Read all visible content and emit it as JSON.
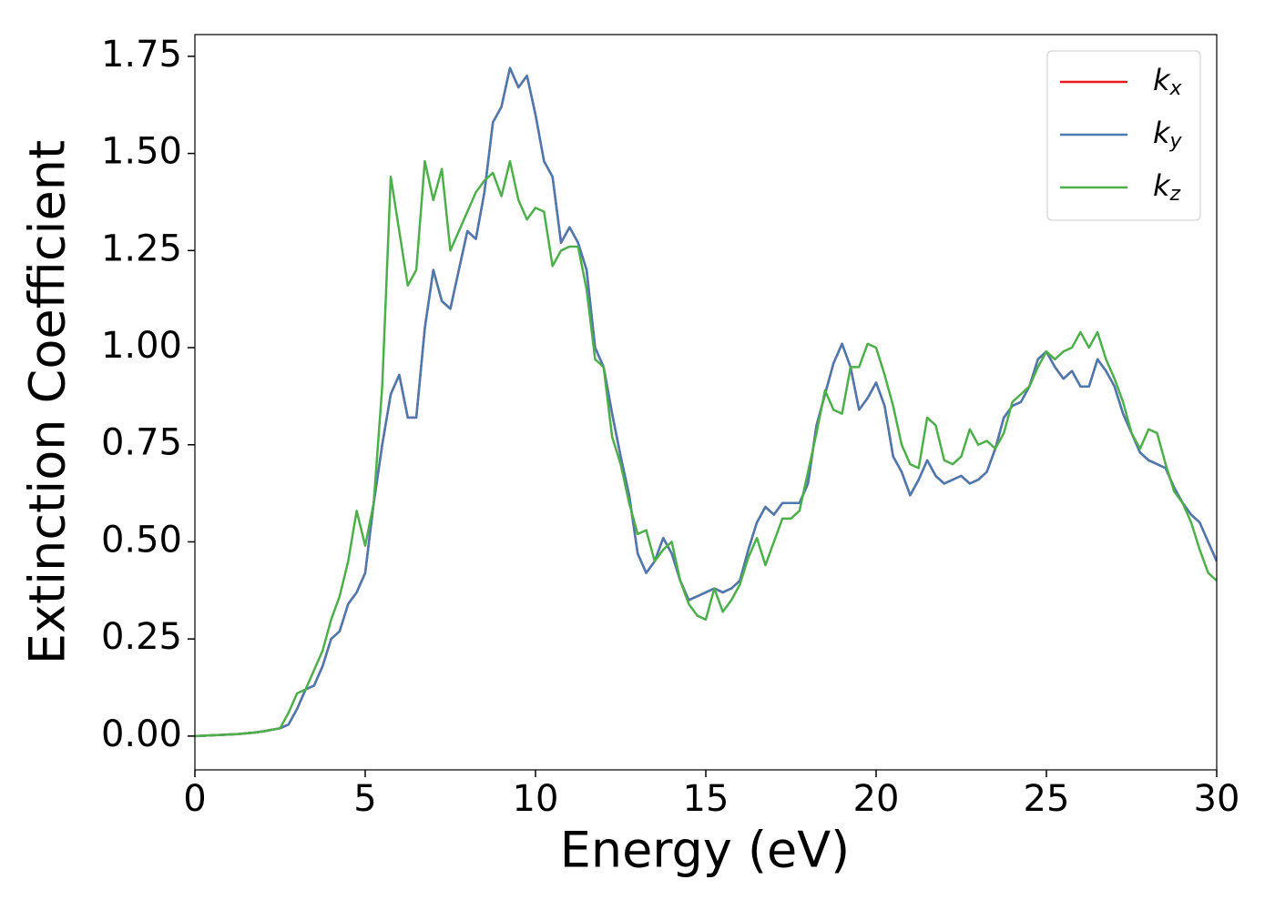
{
  "chart_data": {
    "type": "line",
    "xlabel": "Energy (eV)",
    "ylabel": "Extinction Coefficient",
    "x": [
      0,
      0.25,
      0.5,
      0.75,
      1,
      1.25,
      1.5,
      1.75,
      2,
      2.25,
      2.5,
      2.75,
      3,
      3.25,
      3.5,
      3.75,
      4,
      4.25,
      4.5,
      4.75,
      5,
      5.25,
      5.5,
      5.75,
      6,
      6.25,
      6.5,
      6.75,
      7,
      7.25,
      7.5,
      7.75,
      8,
      8.25,
      8.5,
      8.75,
      9,
      9.25,
      9.5,
      9.75,
      10,
      10.25,
      10.5,
      10.75,
      11,
      11.25,
      11.5,
      11.75,
      12,
      12.25,
      12.5,
      12.75,
      13,
      13.25,
      13.5,
      13.75,
      14,
      14.25,
      14.5,
      14.75,
      15,
      15.25,
      15.5,
      15.75,
      16,
      16.25,
      16.5,
      16.75,
      17,
      17.25,
      17.5,
      17.75,
      18,
      18.25,
      18.5,
      18.75,
      19,
      19.25,
      19.5,
      19.75,
      20,
      20.25,
      20.5,
      20.75,
      21,
      21.25,
      21.5,
      21.75,
      22,
      22.25,
      22.5,
      22.75,
      23,
      23.25,
      23.5,
      23.75,
      24,
      24.25,
      24.5,
      24.75,
      25,
      25.25,
      25.5,
      25.75,
      26,
      26.25,
      26.5,
      26.75,
      27,
      27.25,
      27.5,
      27.75,
      28,
      28.25,
      28.5,
      28.75,
      29,
      29.25,
      29.5,
      29.75,
      30
    ],
    "series": [
      {
        "name": "kx",
        "color": "#e41a1c",
        "values": [
          0,
          0.001,
          0.002,
          0.003,
          0.004,
          0.005,
          0.007,
          0.009,
          0.012,
          0.016,
          0.02,
          0.03,
          0.07,
          0.12,
          0.13,
          0.18,
          0.25,
          0.27,
          0.34,
          0.37,
          0.42,
          0.6,
          0.75,
          0.88,
          0.93,
          0.82,
          0.82,
          1.05,
          1.2,
          1.12,
          1.1,
          1.2,
          1.3,
          1.28,
          1.4,
          1.58,
          1.62,
          1.72,
          1.67,
          1.7,
          1.6,
          1.48,
          1.44,
          1.27,
          1.31,
          1.27,
          1.2,
          1.0,
          0.95,
          0.83,
          0.72,
          0.62,
          0.47,
          0.42,
          0.45,
          0.51,
          0.47,
          0.4,
          0.35,
          0.36,
          0.37,
          0.38,
          0.37,
          0.38,
          0.4,
          0.48,
          0.55,
          0.59,
          0.57,
          0.6,
          0.6,
          0.6,
          0.65,
          0.8,
          0.88,
          0.96,
          1.01,
          0.95,
          0.84,
          0.87,
          0.91,
          0.85,
          0.72,
          0.68,
          0.62,
          0.66,
          0.71,
          0.67,
          0.65,
          0.66,
          0.67,
          0.65,
          0.66,
          0.68,
          0.74,
          0.82,
          0.85,
          0.86,
          0.9,
          0.97,
          0.99,
          0.95,
          0.92,
          0.94,
          0.9,
          0.9,
          0.97,
          0.94,
          0.9,
          0.83,
          0.78,
          0.73,
          0.71,
          0.7,
          0.69,
          0.64,
          0.6,
          0.57,
          0.55,
          0.5,
          0.45
        ]
      },
      {
        "name": "ky",
        "color": "#4a7ab0",
        "values": [
          0,
          0.001,
          0.002,
          0.003,
          0.004,
          0.005,
          0.007,
          0.009,
          0.012,
          0.016,
          0.02,
          0.03,
          0.07,
          0.12,
          0.13,
          0.18,
          0.25,
          0.27,
          0.34,
          0.37,
          0.42,
          0.6,
          0.75,
          0.88,
          0.93,
          0.82,
          0.82,
          1.05,
          1.2,
          1.12,
          1.1,
          1.2,
          1.3,
          1.28,
          1.4,
          1.58,
          1.62,
          1.72,
          1.67,
          1.7,
          1.6,
          1.48,
          1.44,
          1.27,
          1.31,
          1.27,
          1.2,
          1.0,
          0.95,
          0.83,
          0.72,
          0.62,
          0.47,
          0.42,
          0.45,
          0.51,
          0.47,
          0.4,
          0.35,
          0.36,
          0.37,
          0.38,
          0.37,
          0.38,
          0.4,
          0.48,
          0.55,
          0.59,
          0.57,
          0.6,
          0.6,
          0.6,
          0.65,
          0.8,
          0.88,
          0.96,
          1.01,
          0.95,
          0.84,
          0.87,
          0.91,
          0.85,
          0.72,
          0.68,
          0.62,
          0.66,
          0.71,
          0.67,
          0.65,
          0.66,
          0.67,
          0.65,
          0.66,
          0.68,
          0.74,
          0.82,
          0.85,
          0.86,
          0.9,
          0.97,
          0.99,
          0.95,
          0.92,
          0.94,
          0.9,
          0.9,
          0.97,
          0.94,
          0.9,
          0.83,
          0.78,
          0.73,
          0.71,
          0.7,
          0.69,
          0.64,
          0.6,
          0.57,
          0.55,
          0.5,
          0.45
        ]
      },
      {
        "name": "kz",
        "color": "#4daf4a",
        "values": [
          0,
          0.001,
          0.002,
          0.003,
          0.004,
          0.005,
          0.007,
          0.009,
          0.012,
          0.016,
          0.02,
          0.06,
          0.11,
          0.12,
          0.17,
          0.22,
          0.3,
          0.36,
          0.45,
          0.58,
          0.49,
          0.6,
          0.9,
          1.44,
          1.3,
          1.16,
          1.2,
          1.48,
          1.38,
          1.46,
          1.25,
          1.3,
          1.35,
          1.4,
          1.43,
          1.45,
          1.39,
          1.48,
          1.38,
          1.33,
          1.36,
          1.35,
          1.21,
          1.25,
          1.26,
          1.26,
          1.15,
          0.97,
          0.95,
          0.77,
          0.7,
          0.6,
          0.52,
          0.53,
          0.45,
          0.48,
          0.5,
          0.4,
          0.34,
          0.31,
          0.3,
          0.38,
          0.32,
          0.35,
          0.39,
          0.46,
          0.51,
          0.44,
          0.5,
          0.56,
          0.56,
          0.58,
          0.68,
          0.78,
          0.89,
          0.84,
          0.83,
          0.95,
          0.95,
          1.01,
          1.0,
          0.93,
          0.85,
          0.75,
          0.7,
          0.69,
          0.82,
          0.8,
          0.71,
          0.7,
          0.72,
          0.79,
          0.75,
          0.76,
          0.74,
          0.78,
          0.86,
          0.88,
          0.9,
          0.95,
          0.99,
          0.97,
          0.99,
          1.0,
          1.04,
          1.0,
          1.04,
          0.97,
          0.92,
          0.86,
          0.78,
          0.74,
          0.79,
          0.78,
          0.7,
          0.63,
          0.6,
          0.55,
          0.48,
          0.42,
          0.4
        ]
      }
    ],
    "xlim": [
      0,
      30
    ],
    "xticks": [
      0,
      5,
      10,
      15,
      20,
      25,
      30
    ],
    "ylim": [
      -0.087,
      1.806
    ],
    "yticks": [
      {
        "value": 0,
        "label": "0.00"
      },
      {
        "value": 0.25,
        "label": "0.25"
      },
      {
        "value": 0.5,
        "label": "0.50"
      },
      {
        "value": 0.75,
        "label": "0.75"
      },
      {
        "value": 1,
        "label": "1.00"
      },
      {
        "value": 1.25,
        "label": "1.25"
      },
      {
        "value": 1.5,
        "label": "1.50"
      },
      {
        "value": 1.75,
        "label": "1.75"
      }
    ],
    "grid": false,
    "legend": "upper right"
  }
}
